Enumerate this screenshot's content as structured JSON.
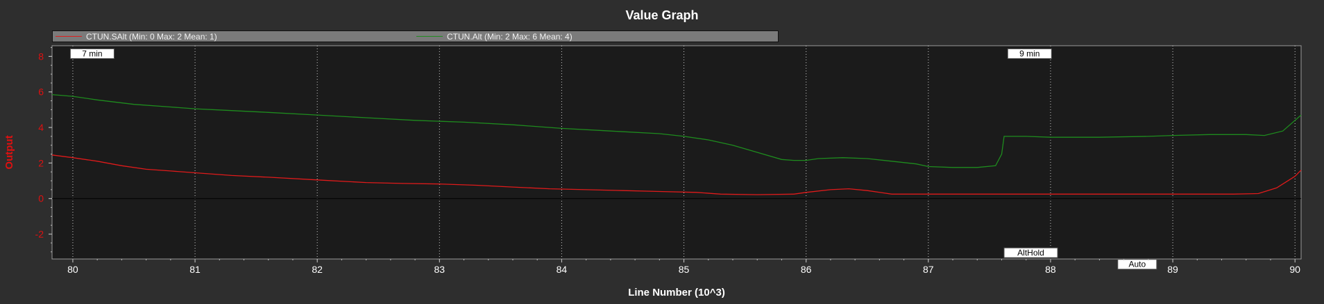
{
  "chart_data": {
    "type": "line",
    "title": "Value Graph",
    "xlabel": "Line Number (10^3)",
    "ylabel": "Output",
    "xlim": [
      79.83,
      90.05
    ],
    "ylim": [
      -3.4,
      8.6
    ],
    "xticks": [
      "80",
      "81",
      "82",
      "83",
      "84",
      "85",
      "86",
      "87",
      "88",
      "89",
      "90"
    ],
    "yticks": [
      "8",
      "6",
      "4",
      "2",
      "0",
      "-2"
    ],
    "ytick_values": [
      8,
      6,
      4,
      2,
      0,
      -2
    ],
    "grid": true,
    "legend_position": "top",
    "series": [
      {
        "name": "CTUN.SAlt (Min: 0 Max: 2 Mean: 1)",
        "color": "#e01b1b",
        "x": [
          79.83,
          80.0,
          80.2,
          80.4,
          80.6,
          80.8,
          81.0,
          81.3,
          81.6,
          82.0,
          82.4,
          82.7,
          83.0,
          83.3,
          83.6,
          83.9,
          84.2,
          84.5,
          84.8,
          85.1,
          85.3,
          85.6,
          85.9,
          86.0,
          86.2,
          86.35,
          86.5,
          86.7,
          87.0,
          87.5,
          88.0,
          88.5,
          89.0,
          89.5,
          89.7,
          89.85,
          90.0,
          90.05
        ],
        "y": [
          2.45,
          2.3,
          2.1,
          1.85,
          1.65,
          1.55,
          1.45,
          1.3,
          1.2,
          1.05,
          0.9,
          0.85,
          0.82,
          0.75,
          0.65,
          0.55,
          0.5,
          0.45,
          0.4,
          0.35,
          0.25,
          0.22,
          0.25,
          0.35,
          0.5,
          0.55,
          0.45,
          0.25,
          0.25,
          0.25,
          0.25,
          0.25,
          0.25,
          0.25,
          0.28,
          0.6,
          1.25,
          1.6
        ]
      },
      {
        "name": "CTUN.Alt (Min: 2 Max: 6 Mean: 4)",
        "color": "#1e8c1e",
        "x": [
          79.83,
          80.0,
          80.2,
          80.5,
          80.8,
          81.0,
          81.3,
          81.6,
          82.0,
          82.4,
          82.8,
          83.0,
          83.2,
          83.6,
          84.0,
          84.4,
          84.8,
          85.0,
          85.2,
          85.4,
          85.6,
          85.8,
          85.9,
          86.0,
          86.1,
          86.3,
          86.5,
          86.7,
          86.9,
          87.0,
          87.2,
          87.4,
          87.55,
          87.6,
          87.62,
          87.8,
          88.0,
          88.4,
          88.8,
          89.0,
          89.3,
          89.6,
          89.75,
          89.9,
          90.05
        ],
        "y": [
          5.85,
          5.75,
          5.55,
          5.3,
          5.15,
          5.05,
          4.95,
          4.85,
          4.7,
          4.55,
          4.4,
          4.35,
          4.3,
          4.15,
          3.95,
          3.8,
          3.65,
          3.5,
          3.3,
          3.0,
          2.6,
          2.2,
          2.15,
          2.15,
          2.25,
          2.3,
          2.25,
          2.1,
          1.95,
          1.8,
          1.75,
          1.75,
          1.85,
          2.5,
          3.5,
          3.5,
          3.45,
          3.45,
          3.5,
          3.55,
          3.6,
          3.6,
          3.55,
          3.8,
          4.7
        ]
      }
    ],
    "annotations": [
      {
        "text": "7 min",
        "x": 79.98,
        "y": 8.15
      },
      {
        "text": "9 min",
        "x": 87.65,
        "y": 8.15
      },
      {
        "text": "AltHold",
        "x": 87.62,
        "y": -3.05
      },
      {
        "text": "Auto",
        "x": 88.55,
        "y": -3.7
      }
    ]
  }
}
